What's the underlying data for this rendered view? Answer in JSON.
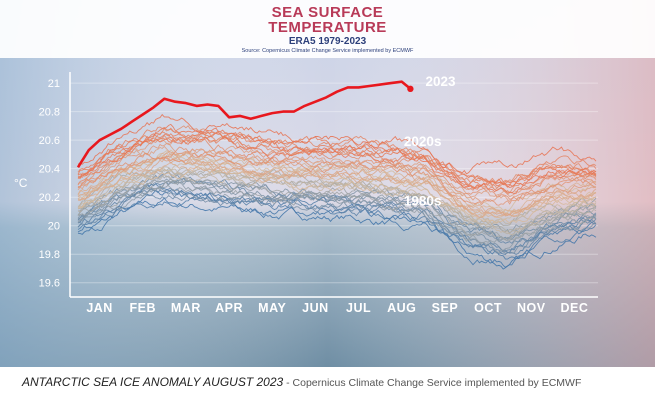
{
  "chart_data": {
    "type": "line",
    "title_line1": "SEA SURFACE",
    "title_line2": "TEMPERATURE",
    "subtitle": "ERA5 1979-2023",
    "source": "Source: Copernicus Climate Change Service implemented by ECMWF",
    "ylabel": "°C",
    "ylim": [
      19.5,
      21.05
    ],
    "yticks": [
      19.6,
      19.8,
      20,
      20.2,
      20.4,
      20.6,
      20.8,
      21
    ],
    "ytick_labels": [
      "19.6",
      "19.8",
      "20",
      "20.2",
      "20.4",
      "20.6",
      "20.8",
      "21"
    ],
    "x_labels": [
      "JAN",
      "FEB",
      "MAR",
      "APR",
      "MAY",
      "JUN",
      "JUL",
      "AUG",
      "SEP",
      "OCT",
      "NOV",
      "DEC"
    ],
    "annotations": [
      "2023",
      "2020s",
      "1980s"
    ],
    "colors": {
      "y2023": "#e8181e",
      "recent": "#e0704e",
      "old": "#3c72a8",
      "text": "#ffffff"
    },
    "series": [
      {
        "years": "1979-2022",
        "envelope": {
          "x": [
            0,
            1,
            2,
            3,
            4,
            5,
            6,
            7,
            8,
            9,
            10,
            11,
            12
          ],
          "low": [
            19.92,
            20.06,
            20.14,
            20.12,
            20.08,
            20.06,
            20.05,
            20.02,
            19.98,
            19.78,
            19.7,
            19.85,
            19.95
          ],
          "high": [
            20.45,
            20.65,
            20.78,
            20.76,
            20.7,
            20.66,
            20.66,
            20.66,
            20.62,
            20.46,
            20.44,
            20.56,
            20.5
          ]
        }
      },
      {
        "name": "2023",
        "x": [
          0,
          0.25,
          0.5,
          0.75,
          1.0,
          1.25,
          1.5,
          1.75,
          2.0,
          2.25,
          2.5,
          2.75,
          3.0,
          3.25,
          3.5,
          3.75,
          4.0,
          4.25,
          4.5,
          4.75,
          5.0,
          5.25,
          5.5,
          5.75,
          6.0,
          6.25,
          6.5,
          6.75,
          7.0,
          7.25,
          7.5,
          7.7
        ],
        "y": [
          20.41,
          20.53,
          20.6,
          20.64,
          20.68,
          20.73,
          20.78,
          20.83,
          20.89,
          20.87,
          20.86,
          20.84,
          20.85,
          20.84,
          20.76,
          20.77,
          20.75,
          20.77,
          20.79,
          20.8,
          20.8,
          20.84,
          20.87,
          20.9,
          20.94,
          20.97,
          20.97,
          20.98,
          20.99,
          21.0,
          21.01,
          20.96
        ]
      }
    ]
  },
  "caption": {
    "main": "ANTARCTIC SEA ICE ANOMALY AUGUST 2023",
    "source": " - Copernicus Climate Change Service implemented by ECMWF"
  }
}
